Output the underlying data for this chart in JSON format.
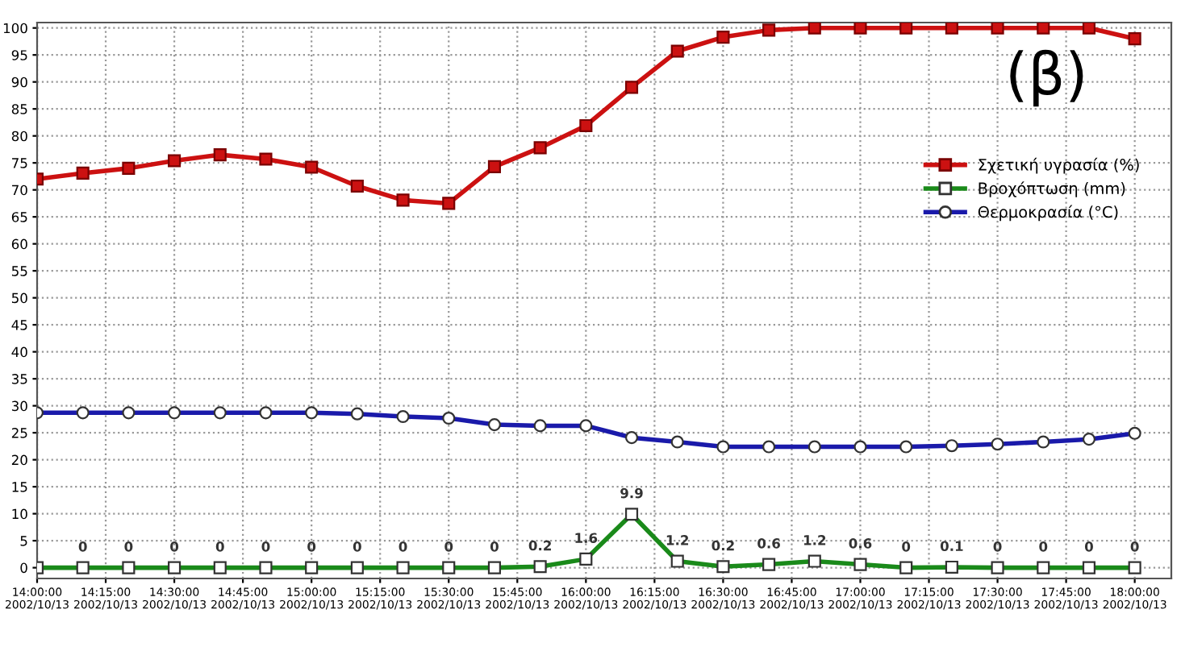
{
  "chart_data": {
    "type": "line",
    "x": [
      "2002-10-13T14:00",
      "2002-10-13T14:10",
      "2002-10-13T14:20",
      "2002-10-13T14:30",
      "2002-10-13T14:40",
      "2002-10-13T14:50",
      "2002-10-13T15:00",
      "2002-10-13T15:10",
      "2002-10-13T15:20",
      "2002-10-13T15:30",
      "2002-10-13T15:40",
      "2002-10-13T15:50",
      "2002-10-13T16:00",
      "2002-10-13T16:10",
      "2002-10-13T16:20",
      "2002-10-13T16:30",
      "2002-10-13T16:40",
      "2002-10-13T16:50",
      "2002-10-13T17:00",
      "2002-10-13T17:10",
      "2002-10-13T17:20",
      "2002-10-13T17:30",
      "2002-10-13T17:40",
      "2002-10-13T17:50",
      "2002-10-13T18:00"
    ],
    "series": [
      {
        "name": "Σχετική υγρασία (%)",
        "color": "#cc1111",
        "marker": "square",
        "values": [
          72,
          73.1,
          74,
          75.4,
          76.5,
          75.7,
          74.2,
          70.7,
          68.1,
          67.5,
          74.3,
          77.8,
          81.9,
          89,
          95.7,
          98.3,
          99.6,
          100,
          100,
          100,
          100,
          100,
          100,
          100,
          98
        ]
      },
      {
        "name": "Βροχόπτωση (mm)",
        "color": "#1a8a1a",
        "marker": "square",
        "values": [
          0,
          0,
          0,
          0,
          0,
          0,
          0,
          0,
          0,
          0,
          0,
          0.2,
          1.6,
          9.9,
          1.2,
          0.2,
          0.6,
          1.2,
          0.6,
          0,
          0.1,
          0,
          0,
          0,
          0
        ],
        "value_labels": [
          null,
          "0",
          "0",
          "0",
          "0",
          "0",
          "0",
          "0",
          "0",
          "0",
          "0",
          "0.2",
          "1.6",
          "9.9",
          "1.2",
          "0.2",
          "0.6",
          "1.2",
          "0.6",
          "0",
          "0.1",
          "0",
          "0",
          "0",
          "0"
        ]
      },
      {
        "name": "Θερμοκρασία (°C)",
        "color": "#1a1aaa",
        "marker": "circle",
        "values": [
          28.7,
          28.7,
          28.7,
          28.7,
          28.7,
          28.7,
          28.7,
          28.5,
          28,
          27.7,
          26.5,
          26.3,
          26.3,
          24.1,
          23.3,
          22.4,
          22.4,
          22.4,
          22.4,
          22.4,
          22.6,
          22.9,
          23.3,
          23.8,
          24.9
        ]
      }
    ],
    "xlim": [
      "2002-10-13T14:00",
      "2002-10-13T18:08"
    ],
    "xticks": [
      {
        "value": "2002-10-13T14:00",
        "label": "14:00:00\n2002/10/13"
      },
      {
        "value": "2002-10-13T14:15",
        "label": "14:15:00\n2002/10/13"
      },
      {
        "value": "2002-10-13T14:30",
        "label": "14:30:00\n2002/10/13"
      },
      {
        "value": "2002-10-13T14:45",
        "label": "14:45:00\n2002/10/13"
      },
      {
        "value": "2002-10-13T15:00",
        "label": "15:00:00\n2002/10/13"
      },
      {
        "value": "2002-10-13T15:15",
        "label": "15:15:00\n2002/10/13"
      },
      {
        "value": "2002-10-13T15:30",
        "label": "15:30:00\n2002/10/13"
      },
      {
        "value": "2002-10-13T15:45",
        "label": "15:45:00\n2002/10/13"
      },
      {
        "value": "2002-10-13T16:00",
        "label": "16:00:00\n2002/10/13"
      },
      {
        "value": "2002-10-13T16:15",
        "label": "16:15:00\n2002/10/13"
      },
      {
        "value": "2002-10-13T16:30",
        "label": "16:30:00\n2002/10/13"
      },
      {
        "value": "2002-10-13T16:45",
        "label": "16:45:00\n2002/10/13"
      },
      {
        "value": "2002-10-13T17:00",
        "label": "17:00:00\n2002/10/13"
      },
      {
        "value": "2002-10-13T17:15",
        "label": "17:15:00\n2002/10/13"
      },
      {
        "value": "2002-10-13T17:30",
        "label": "17:30:00\n2002/10/13"
      },
      {
        "value": "2002-10-13T17:45",
        "label": "17:45:00\n2002/10/13"
      },
      {
        "value": "2002-10-13T18:00",
        "label": "18:00:00\n2002/10/13"
      }
    ],
    "ylim": [
      -2,
      101
    ],
    "yticks": [
      0,
      5,
      10,
      15,
      20,
      25,
      30,
      35,
      40,
      45,
      50,
      55,
      60,
      65,
      70,
      75,
      80,
      85,
      90,
      95,
      100
    ],
    "grid": true,
    "legend": "center right",
    "line_style": "solid",
    "annotations": [
      "(β)"
    ]
  }
}
